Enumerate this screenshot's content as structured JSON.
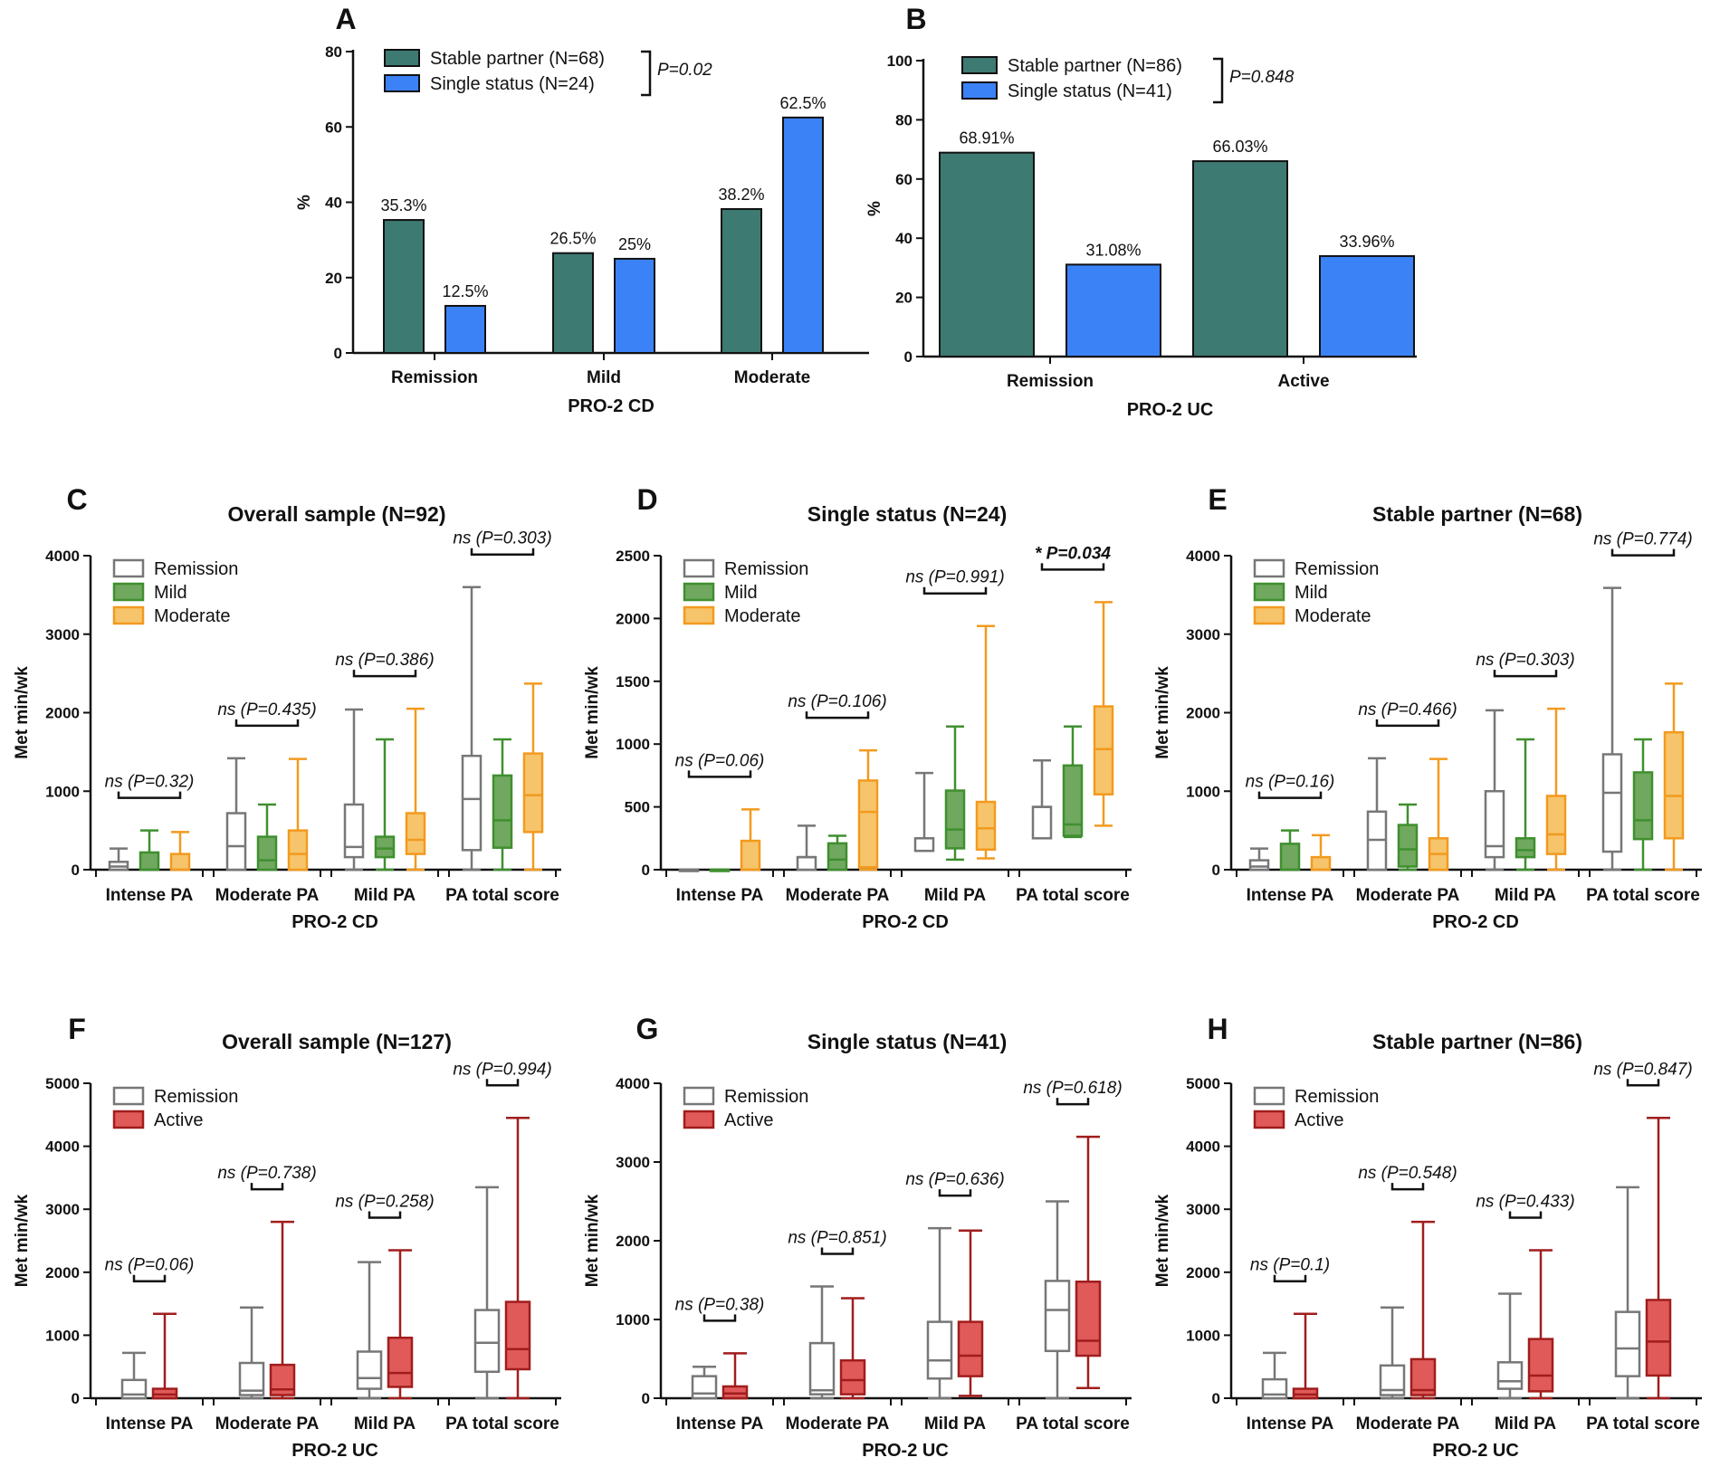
{
  "chart_data": [
    {
      "panel": "A",
      "type": "bar",
      "categories": [
        "Remission",
        "Mild",
        "Moderate"
      ],
      "xlabel": "PRO-2 CD",
      "ylabel": "%",
      "ylim": [
        0,
        80
      ],
      "yticks": [
        0,
        20,
        40,
        60,
        80
      ],
      "series": [
        {
          "name": "Stable partner (N=68)",
          "color": "#3d7a72",
          "values": [
            35.3,
            26.5,
            38.2
          ],
          "labels": [
            "35.3%",
            "26.5%",
            "38.2%"
          ]
        },
        {
          "name": "Single status (N=24)",
          "color": "#3b82f6",
          "values": [
            12.5,
            25,
            62.5
          ],
          "labels": [
            "12.5%",
            "25%",
            "62.5%"
          ]
        }
      ],
      "pvalue": "P=0.02"
    },
    {
      "panel": "B",
      "type": "bar",
      "categories": [
        "Remission",
        "Active"
      ],
      "xlabel": "PRO-2 UC",
      "ylabel": "%",
      "ylim": [
        0,
        100
      ],
      "yticks": [
        0,
        20,
        40,
        60,
        80,
        100
      ],
      "series": [
        {
          "name": "Stable partner (N=86)",
          "color": "#3d7a72",
          "values": [
            68.91,
            66.03
          ],
          "labels": [
            "68.91%",
            "66.03%"
          ]
        },
        {
          "name": "Single status (N=41)",
          "color": "#3b82f6",
          "values": [
            31.08,
            33.96
          ],
          "labels": [
            "31.08%",
            "33.96%"
          ]
        }
      ],
      "pvalue": "P=0.848"
    },
    {
      "panel": "C",
      "type": "box",
      "title": "Overall sample (N=92)",
      "xlabel": "PRO-2 CD",
      "ylabel": "Met min/wk",
      "ylim": [
        0,
        4000
      ],
      "yticks": [
        0,
        1000,
        2000,
        3000,
        4000
      ],
      "categories": [
        "Intense PA",
        "Moderate PA",
        "Mild PA",
        "PA total score"
      ],
      "series": [
        {
          "name": "Remission",
          "color": "#777777",
          "fill": "#ffffff",
          "boxes": [
            [
              0,
              0,
              40,
              100,
              270
            ],
            [
              0,
              0,
              300,
              720,
              1420
            ],
            [
              0,
              160,
              290,
              830,
              2040
            ],
            [
              0,
              250,
              900,
              1450,
              3600
            ]
          ]
        },
        {
          "name": "Mild",
          "color": "#3f8f2f",
          "fill": "#70a85f",
          "boxes": [
            [
              0,
              0,
              0,
              220,
              500
            ],
            [
              0,
              0,
              120,
              420,
              830
            ],
            [
              0,
              160,
              270,
              420,
              1660
            ],
            [
              0,
              280,
              630,
              1200,
              1660
            ]
          ]
        },
        {
          "name": "Moderate",
          "color": "#f29a1f",
          "fill": "#f6c46b",
          "boxes": [
            [
              0,
              0,
              0,
              200,
              480
            ],
            [
              0,
              0,
              200,
              500,
              1410
            ],
            [
              0,
              200,
              380,
              720,
              2050
            ],
            [
              0,
              480,
              950,
              1480,
              2370
            ]
          ]
        }
      ],
      "pvalues": [
        {
          "label": "ns (P=0.32)",
          "bold": false
        },
        {
          "label": "ns (P=0.435)",
          "bold": false
        },
        {
          "label": "ns (P=0.386)",
          "bold": false
        },
        {
          "label": "ns (P=0.303)",
          "bold": false
        }
      ]
    },
    {
      "panel": "D",
      "type": "box",
      "title": "Single status (N=24)",
      "xlabel": "PRO-2 CD",
      "ylabel": "Met min/wk",
      "ylim": [
        0,
        2500
      ],
      "yticks": [
        0,
        500,
        1000,
        1500,
        2000,
        2500
      ],
      "categories": [
        "Intense PA",
        "Moderate PA",
        "Mild PA",
        "PA total score"
      ],
      "series": [
        {
          "name": "Remission",
          "color": "#777777",
          "fill": "#ffffff",
          "boxes": [
            [
              0,
              0,
              0,
              0,
              0
            ],
            [
              0,
              0,
              100,
              100,
              350
            ],
            [
              150,
              150,
              250,
              250,
              770
            ],
            [
              250,
              250,
              500,
              500,
              870
            ]
          ]
        },
        {
          "name": "Mild",
          "color": "#3f8f2f",
          "fill": "#70a85f",
          "boxes": [
            [
              0,
              0,
              0,
              0,
              0
            ],
            [
              0,
              0,
              80,
              210,
              270
            ],
            [
              80,
              170,
              320,
              630,
              1140
            ],
            [
              260,
              270,
              360,
              830,
              1140
            ]
          ]
        },
        {
          "name": "Moderate",
          "color": "#f29a1f",
          "fill": "#f6c46b",
          "boxes": [
            [
              0,
              0,
              0,
              230,
              480
            ],
            [
              0,
              20,
              460,
              710,
              950
            ],
            [
              90,
              160,
              330,
              540,
              1940
            ],
            [
              350,
              600,
              960,
              1300,
              2130
            ]
          ]
        }
      ],
      "pvalues": [
        {
          "label": "ns (P=0.06)",
          "bold": false
        },
        {
          "label": "ns (P=0.106)",
          "bold": false
        },
        {
          "label": "ns (P=0.991)",
          "bold": false
        },
        {
          "label": "* P=0.034",
          "bold": true
        }
      ]
    },
    {
      "panel": "E",
      "type": "box",
      "title": "Stable partner (N=68)",
      "xlabel": "PRO-2 CD",
      "ylabel": "Met min/wk",
      "ylim": [
        0,
        4000
      ],
      "yticks": [
        0,
        1000,
        2000,
        3000,
        4000
      ],
      "categories": [
        "Intense PA",
        "Moderate PA",
        "Mild PA",
        "PA total score"
      ],
      "series": [
        {
          "name": "Remission",
          "color": "#777777",
          "fill": "#ffffff",
          "boxes": [
            [
              0,
              0,
              40,
              120,
              270
            ],
            [
              0,
              0,
              380,
              740,
              1420
            ],
            [
              0,
              160,
              300,
              1000,
              2030
            ],
            [
              0,
              230,
              980,
              1470,
              3590
            ]
          ]
        },
        {
          "name": "Mild",
          "color": "#3f8f2f",
          "fill": "#70a85f",
          "boxes": [
            [
              0,
              0,
              0,
              330,
              500
            ],
            [
              0,
              40,
              260,
              570,
              830
            ],
            [
              0,
              160,
              250,
              400,
              1660
            ],
            [
              0,
              390,
              630,
              1240,
              1660
            ]
          ]
        },
        {
          "name": "Moderate",
          "color": "#f29a1f",
          "fill": "#f6c46b",
          "boxes": [
            [
              0,
              0,
              0,
              160,
              440
            ],
            [
              0,
              0,
              200,
              400,
              1410
            ],
            [
              0,
              200,
              450,
              940,
              2050
            ],
            [
              0,
              400,
              940,
              1750,
              2370
            ]
          ]
        }
      ],
      "pvalues": [
        {
          "label": "ns (P=0.16)",
          "bold": false
        },
        {
          "label": "ns (P=0.466)",
          "bold": false
        },
        {
          "label": "ns (P=0.303)",
          "bold": false
        },
        {
          "label": "ns (P=0.774)",
          "bold": false
        }
      ]
    },
    {
      "panel": "F",
      "type": "box",
      "title": "Overall sample (N=127)",
      "xlabel": "PRO-2 UC",
      "ylabel": "Met min/wk",
      "ylim": [
        0,
        5000
      ],
      "yticks": [
        0,
        1000,
        2000,
        3000,
        4000,
        5000
      ],
      "categories": [
        "Intense PA",
        "Moderate PA",
        "Mild PA",
        "PA total score"
      ],
      "series": [
        {
          "name": "Remission",
          "color": "#777777",
          "fill": "#ffffff",
          "boxes": [
            [
              0,
              0,
              60,
              290,
              720
            ],
            [
              0,
              50,
              120,
              560,
              1440
            ],
            [
              0,
              150,
              320,
              740,
              2160
            ],
            [
              0,
              420,
              880,
              1400,
              3350
            ]
          ]
        },
        {
          "name": "Active",
          "color": "#a11d1d",
          "fill": "#e05a5a",
          "boxes": [
            [
              0,
              0,
              60,
              150,
              1340
            ],
            [
              0,
              50,
              140,
              530,
              2800
            ],
            [
              0,
              180,
              400,
              960,
              2350
            ],
            [
              0,
              460,
              780,
              1530,
              4450
            ]
          ]
        }
      ],
      "pvalues": [
        {
          "label": "ns (P=0.06)",
          "bold": false
        },
        {
          "label": "ns (P=0.738)",
          "bold": false
        },
        {
          "label": "ns (P=0.258)",
          "bold": false
        },
        {
          "label": "ns (P=0.994)",
          "bold": false
        }
      ]
    },
    {
      "panel": "G",
      "type": "box",
      "title": "Single status (N=41)",
      "xlabel": "PRO-2 UC",
      "ylabel": "Met min/wk",
      "ylim": [
        0,
        4000
      ],
      "yticks": [
        0,
        1000,
        2000,
        3000,
        4000
      ],
      "categories": [
        "Intense PA",
        "Moderate PA",
        "Mild PA",
        "PA total score"
      ],
      "series": [
        {
          "name": "Remission",
          "color": "#777777",
          "fill": "#ffffff",
          "boxes": [
            [
              0,
              0,
              60,
              280,
              400
            ],
            [
              0,
              50,
              100,
              700,
              1420
            ],
            [
              0,
              250,
              480,
              970,
              2160
            ],
            [
              0,
              600,
              1120,
              1490,
              2500
            ]
          ]
        },
        {
          "name": "Active",
          "color": "#a11d1d",
          "fill": "#e05a5a",
          "boxes": [
            [
              0,
              0,
              60,
              150,
              570
            ],
            [
              0,
              50,
              230,
              480,
              1270
            ],
            [
              30,
              280,
              540,
              970,
              2130
            ],
            [
              130,
              540,
              730,
              1480,
              3320
            ]
          ]
        }
      ],
      "pvalues": [
        {
          "label": "ns (P=0.38)",
          "bold": false
        },
        {
          "label": "ns (P=0.851)",
          "bold": false
        },
        {
          "label": "ns (P=0.636)",
          "bold": false
        },
        {
          "label": "ns (P=0.618)",
          "bold": false
        }
      ]
    },
    {
      "panel": "H",
      "type": "box",
      "title": "Stable partner (N=86)",
      "xlabel": "PRO-2 UC",
      "ylabel": "Met min/wk",
      "ylim": [
        0,
        5000
      ],
      "yticks": [
        0,
        1000,
        2000,
        3000,
        4000,
        5000
      ],
      "categories": [
        "Intense PA",
        "Moderate PA",
        "Mild PA",
        "PA total score"
      ],
      "series": [
        {
          "name": "Remission",
          "color": "#777777",
          "fill": "#ffffff",
          "boxes": [
            [
              0,
              0,
              60,
              300,
              720
            ],
            [
              0,
              50,
              130,
              520,
              1440
            ],
            [
              0,
              150,
              270,
              570,
              1660
            ],
            [
              0,
              350,
              790,
              1370,
              3350
            ]
          ]
        },
        {
          "name": "Active",
          "color": "#a11d1d",
          "fill": "#e05a5a",
          "boxes": [
            [
              0,
              0,
              60,
              150,
              1340
            ],
            [
              0,
              50,
              130,
              620,
              2800
            ],
            [
              0,
              110,
              360,
              940,
              2350
            ],
            [
              0,
              360,
              900,
              1560,
              4450
            ]
          ]
        }
      ],
      "pvalues": [
        {
          "label": "ns (P=0.1)",
          "bold": false
        },
        {
          "label": "ns (P=0.548)",
          "bold": false
        },
        {
          "label": "ns (P=0.433)",
          "bold": false
        },
        {
          "label": "ns (P=0.847)",
          "bold": false
        }
      ]
    }
  ]
}
